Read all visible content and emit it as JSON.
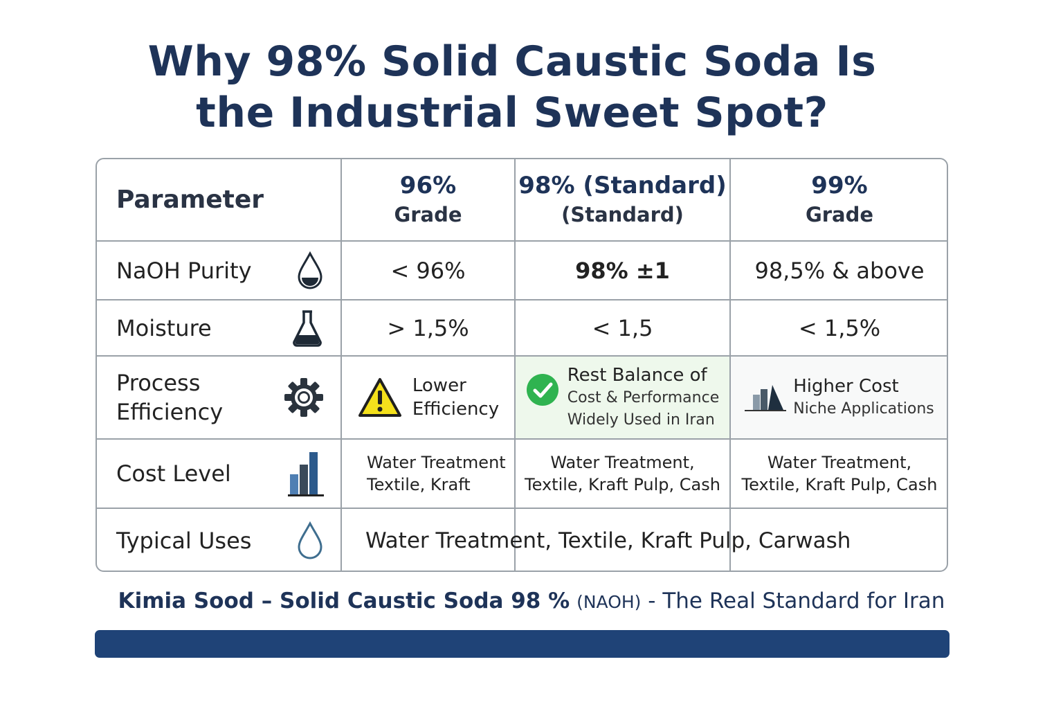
{
  "title": {
    "line1": "Why 98% Solid Caustic Soda Is",
    "line2": "the Industrial Sweet Spot?"
  },
  "table": {
    "headers": {
      "parameter": "Parameter",
      "grade96_line1": "96%",
      "grade96_line2": "Grade",
      "grade98_line1": "98% (Standard)",
      "grade98_line2": "(Standard)",
      "grade99_line1": "99%",
      "grade99_line2": "Grade"
    },
    "rows": {
      "purity": {
        "label": "NaOH Purity",
        "icon": "droplet-icon",
        "g96": "< 96%",
        "g98": "98% ±1",
        "g99": "98,5% & above"
      },
      "moisture": {
        "label": "Moisture",
        "icon": "flask-icon",
        "g96": "> 1,5%",
        "g98": "< 1,5",
        "g99": "< 1,5%"
      },
      "efficiency": {
        "label_line1": "Process",
        "label_line2": "Efficiency",
        "icon": "gear-icon",
        "g96_line1": "Lower",
        "g96_line2": "Efficiency",
        "g96_icon": "warning-icon",
        "g98_line1": "Rest Balance of",
        "g98_line2": "Cost & Performance",
        "g98_line3": "Widely Used in Iran",
        "g98_icon": "check-circle-icon",
        "g99_line1": "Higher Cost",
        "g99_line2": "Niche Applications",
        "g99_icon": "bar-chart-icon"
      },
      "cost": {
        "label": "Cost Level",
        "icon": "bar-chart-icon",
        "g96_line1": "Water Treatment",
        "g96_line2": "Textile, Kraft",
        "g98_line1": "Water Treatment,",
        "g98_line2": "Textile, Kraft Pulp, Cash",
        "g99_line1": "Water Treatment,",
        "g99_line2": "Textile, Kraft Pulp, Cash"
      },
      "uses": {
        "label": "Typical Uses",
        "icon": "droplet-outline-icon",
        "value": "Water Treatment, Textile, Kraft Pulp, Carwash"
      }
    }
  },
  "footer": {
    "bold": "Kimia Sood – Solid Caustic Soda 98 %",
    "abbr": "(NAOH)",
    "rest": "- The Real Standard for Iran"
  },
  "colors": {
    "title": "#1e3358",
    "border": "#9aa1a8",
    "highlight_green": "#eef8ec",
    "check_green": "#2fb350",
    "warning_yellow": "#f4e01c",
    "bar_blue": "#1f4377"
  }
}
